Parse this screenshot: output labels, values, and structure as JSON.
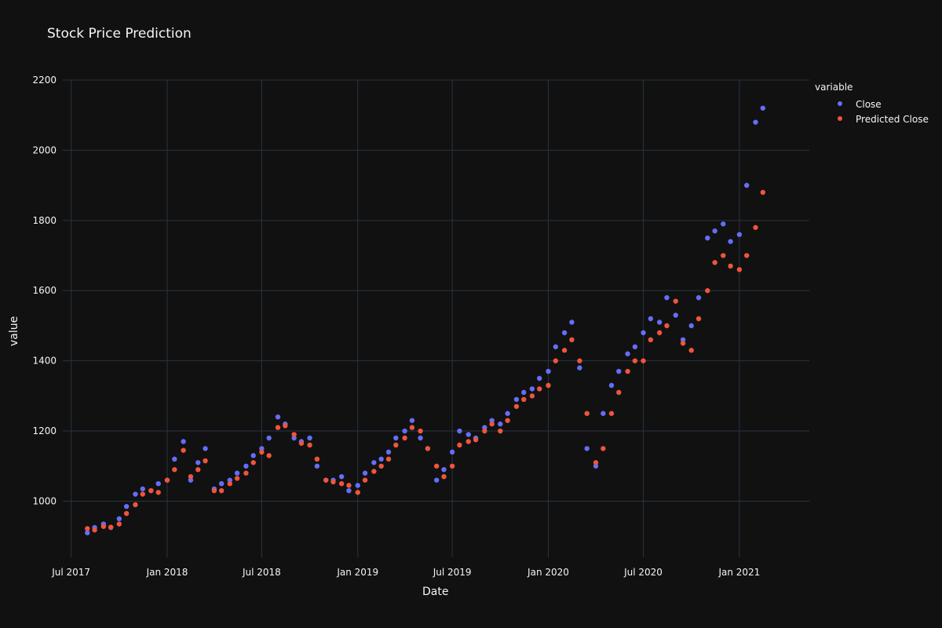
{
  "chart_data": {
    "type": "scatter",
    "title": "Stock Price Prediction",
    "xlabel": "Date",
    "ylabel": "value",
    "legend_title": "variable",
    "xlim": [
      "2017-06-15",
      "2021-05-15"
    ],
    "ylim": [
      840,
      2200
    ],
    "x_ticks": [
      {
        "date": "2017-07-01",
        "label": "Jul 2017"
      },
      {
        "date": "2018-01-01",
        "label": "Jan 2018"
      },
      {
        "date": "2018-07-01",
        "label": "Jul 2018"
      },
      {
        "date": "2019-01-01",
        "label": "Jan 2019"
      },
      {
        "date": "2019-07-01",
        "label": "Jul 2019"
      },
      {
        "date": "2020-01-01",
        "label": "Jan 2020"
      },
      {
        "date": "2020-07-01",
        "label": "Jul 2020"
      },
      {
        "date": "2021-01-01",
        "label": "Jan 2021"
      }
    ],
    "y_ticks": [
      1000,
      1200,
      1400,
      1600,
      1800,
      2000,
      2200
    ],
    "grid": true,
    "legend_position": "top-right",
    "background": "#111111",
    "grid_color": "#283442",
    "series": [
      {
        "name": "Close",
        "color": "#636efa",
        "points": [
          [
            "2017-08-01",
            910
          ],
          [
            "2017-08-15",
            925
          ],
          [
            "2017-09-01",
            935
          ],
          [
            "2017-09-15",
            925
          ],
          [
            "2017-10-01",
            950
          ],
          [
            "2017-10-15",
            985
          ],
          [
            "2017-11-01",
            1020
          ],
          [
            "2017-11-15",
            1035
          ],
          [
            "2017-12-01",
            1030
          ],
          [
            "2017-12-15",
            1050
          ],
          [
            "2018-01-01",
            1060
          ],
          [
            "2018-01-15",
            1120
          ],
          [
            "2018-02-01",
            1170
          ],
          [
            "2018-02-15",
            1060
          ],
          [
            "2018-03-01",
            1110
          ],
          [
            "2018-03-15",
            1150
          ],
          [
            "2018-04-01",
            1035
          ],
          [
            "2018-04-15",
            1050
          ],
          [
            "2018-05-01",
            1060
          ],
          [
            "2018-05-15",
            1080
          ],
          [
            "2018-06-01",
            1100
          ],
          [
            "2018-06-15",
            1130
          ],
          [
            "2018-07-01",
            1150
          ],
          [
            "2018-07-15",
            1180
          ],
          [
            "2018-08-01",
            1240
          ],
          [
            "2018-08-15",
            1220
          ],
          [
            "2018-09-01",
            1180
          ],
          [
            "2018-09-15",
            1170
          ],
          [
            "2018-10-01",
            1180
          ],
          [
            "2018-10-15",
            1100
          ],
          [
            "2018-11-01",
            1060
          ],
          [
            "2018-11-15",
            1060
          ],
          [
            "2018-12-01",
            1070
          ],
          [
            "2018-12-15",
            1030
          ],
          [
            "2019-01-01",
            1045
          ],
          [
            "2019-01-15",
            1080
          ],
          [
            "2019-02-01",
            1110
          ],
          [
            "2019-02-15",
            1120
          ],
          [
            "2019-03-01",
            1140
          ],
          [
            "2019-03-15",
            1180
          ],
          [
            "2019-04-01",
            1200
          ],
          [
            "2019-04-15",
            1230
          ],
          [
            "2019-05-01",
            1180
          ],
          [
            "2019-05-15",
            1150
          ],
          [
            "2019-06-01",
            1060
          ],
          [
            "2019-06-15",
            1090
          ],
          [
            "2019-07-01",
            1140
          ],
          [
            "2019-07-15",
            1200
          ],
          [
            "2019-08-01",
            1190
          ],
          [
            "2019-08-15",
            1180
          ],
          [
            "2019-09-01",
            1210
          ],
          [
            "2019-09-15",
            1230
          ],
          [
            "2019-10-01",
            1220
          ],
          [
            "2019-10-15",
            1250
          ],
          [
            "2019-11-01",
            1290
          ],
          [
            "2019-11-15",
            1310
          ],
          [
            "2019-12-01",
            1320
          ],
          [
            "2019-12-15",
            1350
          ],
          [
            "2020-01-01",
            1370
          ],
          [
            "2020-01-15",
            1440
          ],
          [
            "2020-02-01",
            1480
          ],
          [
            "2020-02-15",
            1510
          ],
          [
            "2020-03-01",
            1380
          ],
          [
            "2020-03-15",
            1150
          ],
          [
            "2020-04-01",
            1100
          ],
          [
            "2020-04-15",
            1250
          ],
          [
            "2020-05-01",
            1330
          ],
          [
            "2020-05-15",
            1370
          ],
          [
            "2020-06-01",
            1420
          ],
          [
            "2020-06-15",
            1440
          ],
          [
            "2020-07-01",
            1480
          ],
          [
            "2020-07-15",
            1520
          ],
          [
            "2020-08-01",
            1510
          ],
          [
            "2020-08-15",
            1580
          ],
          [
            "2020-09-01",
            1530
          ],
          [
            "2020-09-15",
            1460
          ],
          [
            "2020-10-01",
            1500
          ],
          [
            "2020-10-15",
            1580
          ],
          [
            "2020-11-01",
            1750
          ],
          [
            "2020-11-15",
            1770
          ],
          [
            "2020-12-01",
            1790
          ],
          [
            "2020-12-15",
            1740
          ],
          [
            "2021-01-01",
            1760
          ],
          [
            "2021-01-15",
            1900
          ],
          [
            "2021-02-01",
            2080
          ],
          [
            "2021-02-15",
            2120
          ]
        ]
      },
      {
        "name": "Predicted Close",
        "color": "#ef553b",
        "points": [
          [
            "2017-08-01",
            922
          ],
          [
            "2017-08-15",
            918
          ],
          [
            "2017-09-01",
            928
          ],
          [
            "2017-09-15",
            926
          ],
          [
            "2017-10-01",
            935
          ],
          [
            "2017-10-15",
            965
          ],
          [
            "2017-11-01",
            990
          ],
          [
            "2017-11-15",
            1020
          ],
          [
            "2017-12-01",
            1030
          ],
          [
            "2017-12-15",
            1025
          ],
          [
            "2018-01-01",
            1060
          ],
          [
            "2018-01-15",
            1090
          ],
          [
            "2018-02-01",
            1145
          ],
          [
            "2018-02-15",
            1070
          ],
          [
            "2018-03-01",
            1090
          ],
          [
            "2018-03-15",
            1115
          ],
          [
            "2018-04-01",
            1030
          ],
          [
            "2018-04-15",
            1030
          ],
          [
            "2018-05-01",
            1050
          ],
          [
            "2018-05-15",
            1065
          ],
          [
            "2018-06-01",
            1080
          ],
          [
            "2018-06-15",
            1110
          ],
          [
            "2018-07-01",
            1140
          ],
          [
            "2018-07-15",
            1130
          ],
          [
            "2018-08-01",
            1210
          ],
          [
            "2018-08-15",
            1215
          ],
          [
            "2018-09-01",
            1190
          ],
          [
            "2018-09-15",
            1165
          ],
          [
            "2018-10-01",
            1160
          ],
          [
            "2018-10-15",
            1120
          ],
          [
            "2018-11-01",
            1060
          ],
          [
            "2018-11-15",
            1055
          ],
          [
            "2018-12-01",
            1050
          ],
          [
            "2018-12-15",
            1045
          ],
          [
            "2019-01-01",
            1025
          ],
          [
            "2019-01-15",
            1060
          ],
          [
            "2019-02-01",
            1085
          ],
          [
            "2019-02-15",
            1100
          ],
          [
            "2019-03-01",
            1120
          ],
          [
            "2019-03-15",
            1160
          ],
          [
            "2019-04-01",
            1180
          ],
          [
            "2019-04-15",
            1210
          ],
          [
            "2019-05-01",
            1200
          ],
          [
            "2019-05-15",
            1150
          ],
          [
            "2019-06-01",
            1100
          ],
          [
            "2019-06-15",
            1070
          ],
          [
            "2019-07-01",
            1100
          ],
          [
            "2019-07-15",
            1160
          ],
          [
            "2019-08-01",
            1170
          ],
          [
            "2019-08-15",
            1175
          ],
          [
            "2019-09-01",
            1200
          ],
          [
            "2019-09-15",
            1220
          ],
          [
            "2019-10-01",
            1200
          ],
          [
            "2019-10-15",
            1230
          ],
          [
            "2019-11-01",
            1270
          ],
          [
            "2019-11-15",
            1290
          ],
          [
            "2019-12-01",
            1300
          ],
          [
            "2019-12-15",
            1320
          ],
          [
            "2020-01-01",
            1330
          ],
          [
            "2020-01-15",
            1400
          ],
          [
            "2020-02-01",
            1430
          ],
          [
            "2020-02-15",
            1460
          ],
          [
            "2020-03-01",
            1400
          ],
          [
            "2020-03-15",
            1250
          ],
          [
            "2020-04-01",
            1110
          ],
          [
            "2020-04-15",
            1150
          ],
          [
            "2020-05-01",
            1250
          ],
          [
            "2020-05-15",
            1310
          ],
          [
            "2020-06-01",
            1370
          ],
          [
            "2020-06-15",
            1400
          ],
          [
            "2020-07-01",
            1400
          ],
          [
            "2020-07-15",
            1460
          ],
          [
            "2020-08-01",
            1480
          ],
          [
            "2020-08-15",
            1500
          ],
          [
            "2020-09-01",
            1570
          ],
          [
            "2020-09-15",
            1450
          ],
          [
            "2020-10-01",
            1430
          ],
          [
            "2020-10-15",
            1520
          ],
          [
            "2020-11-01",
            1600
          ],
          [
            "2020-11-15",
            1680
          ],
          [
            "2020-12-01",
            1700
          ],
          [
            "2020-12-15",
            1670
          ],
          [
            "2021-01-01",
            1660
          ],
          [
            "2021-01-15",
            1700
          ],
          [
            "2021-02-01",
            1780
          ],
          [
            "2021-02-15",
            1880
          ]
        ]
      }
    ]
  }
}
